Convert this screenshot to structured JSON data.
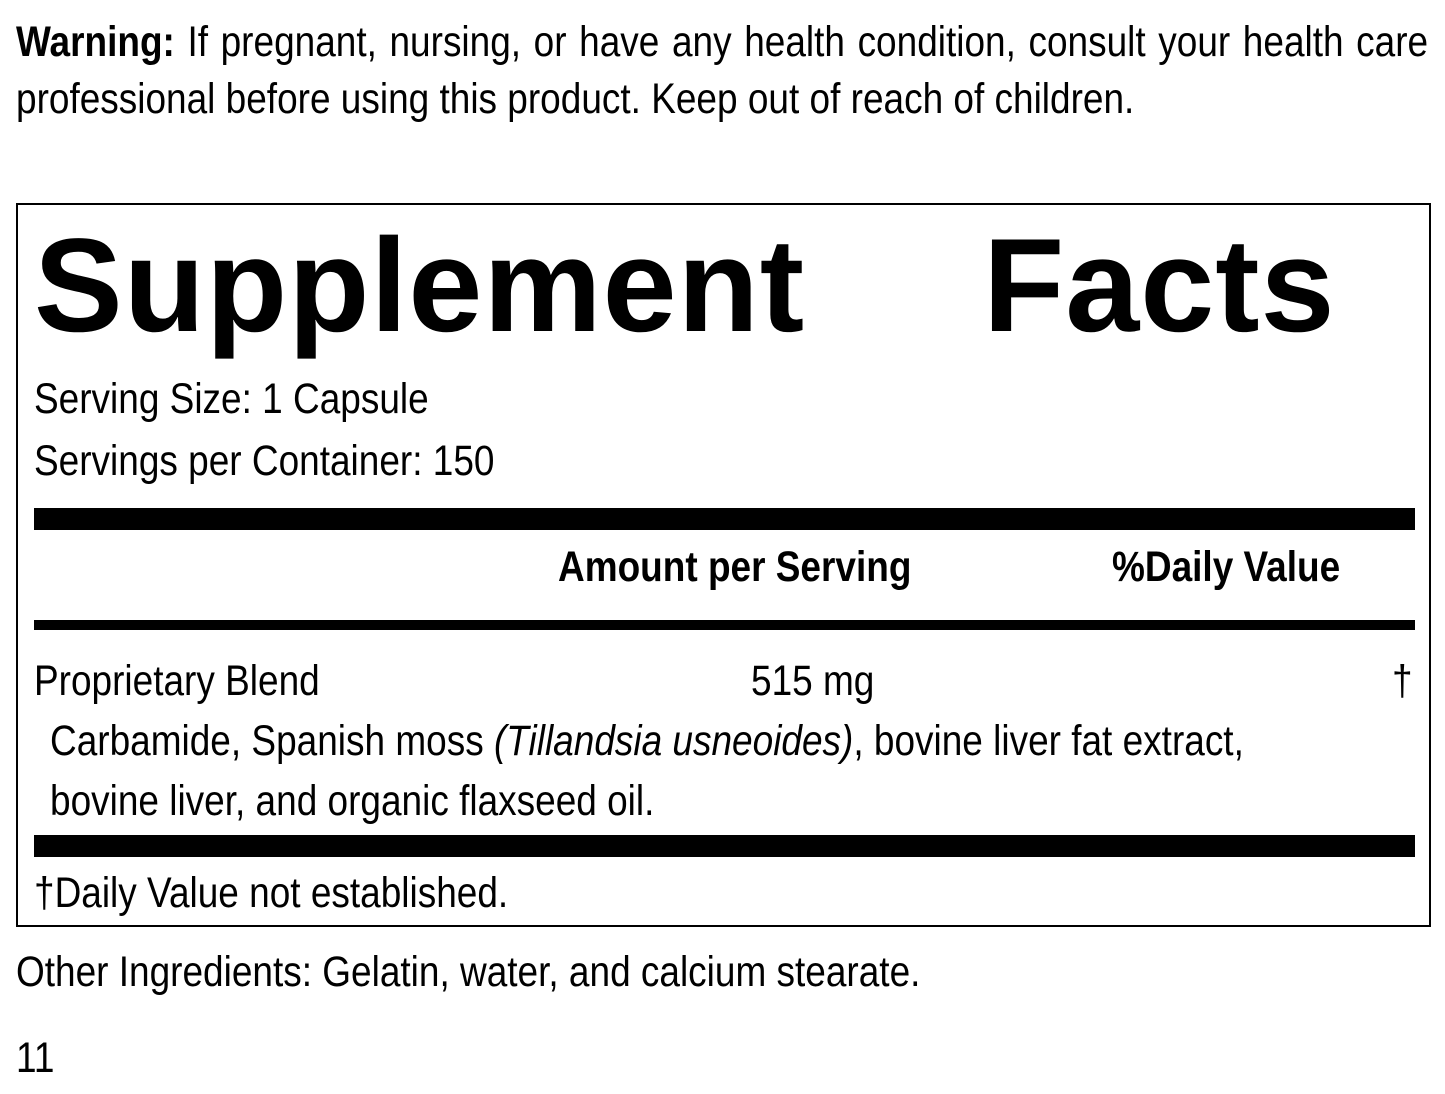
{
  "warning": {
    "label": "Warning:",
    "text": " If pregnant, nursing, or have any health condition, consult your health care professional before using this product. Keep out of reach of children."
  },
  "facts": {
    "title": "Supplement Facts",
    "serving_size": "Serving Size: 1 Capsule",
    "servings_per_container": "Servings per Container: 150",
    "col_amount": "Amount per Serving",
    "col_dv": "%Daily Value",
    "row": {
      "name": "Proprietary Blend",
      "amount": "515 mg",
      "dv": "†",
      "desc_1": "Carbamide, Spanish moss ",
      "desc_italic": "(Tillandsia usneoides)",
      "desc_2": ", bovine liver fat extract,",
      "desc_3": "bovine liver, and organic flaxseed oil."
    },
    "footnote": "†Daily Value not established."
  },
  "other_ingredients": "Other Ingredients: Gelatin, water, and calcium stearate.",
  "page_number": "11"
}
